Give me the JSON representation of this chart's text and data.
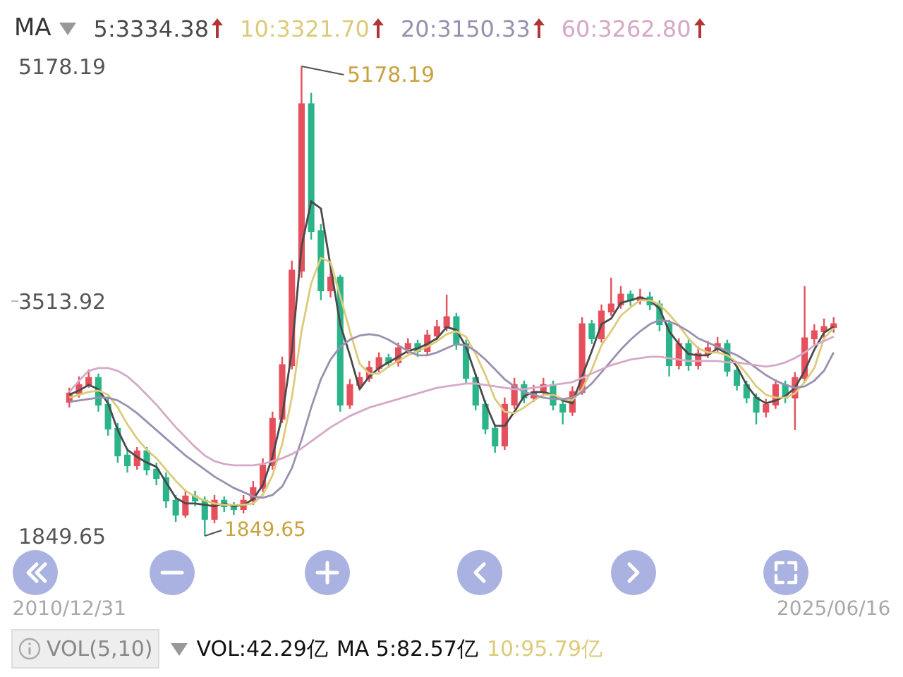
{
  "chart_data": {
    "type": "candlestick",
    "categories": [
      "2010/12/31",
      null,
      null,
      null,
      null,
      null,
      null,
      null,
      null,
      null,
      null,
      null,
      null,
      null,
      null,
      null,
      null,
      null,
      null,
      null,
      null,
      null,
      null,
      null,
      null,
      null,
      null,
      null,
      null,
      null,
      null,
      null,
      null,
      null,
      null,
      null,
      null,
      null,
      null,
      null,
      null,
      null,
      null,
      null,
      null,
      null,
      null,
      null,
      null,
      null,
      null,
      null,
      null,
      null,
      null,
      null,
      null,
      null,
      null,
      null,
      null,
      null,
      null,
      null,
      null,
      null,
      null,
      null,
      null,
      null,
      null,
      null,
      null,
      null,
      null,
      null,
      null,
      null,
      null,
      "2025/06/16"
    ],
    "ohlc": [
      [
        2800,
        2900,
        2760,
        2860
      ],
      [
        2860,
        2980,
        2830,
        2920
      ],
      [
        2920,
        3030,
        2900,
        2970
      ],
      [
        2970,
        3000,
        2730,
        2780
      ],
      [
        2780,
        2830,
        2560,
        2610
      ],
      [
        2610,
        2650,
        2370,
        2420
      ],
      [
        2420,
        2470,
        2300,
        2350
      ],
      [
        2350,
        2480,
        2320,
        2450
      ],
      [
        2450,
        2480,
        2280,
        2320
      ],
      [
        2320,
        2370,
        2210,
        2260
      ],
      [
        2260,
        2300,
        2050,
        2100
      ],
      [
        2100,
        2140,
        1950,
        2000
      ],
      [
        2000,
        2180,
        1980,
        2130
      ],
      [
        2130,
        2170,
        2060,
        2100
      ],
      [
        2100,
        2130,
        1849.65,
        1970
      ],
      [
        1970,
        2140,
        1940,
        2100
      ],
      [
        2100,
        2130,
        2020,
        2060
      ],
      [
        2060,
        2090,
        2000,
        2040
      ],
      [
        2040,
        2140,
        2010,
        2100
      ],
      [
        2100,
        2240,
        2070,
        2190
      ],
      [
        2190,
        2400,
        2160,
        2350
      ],
      [
        2350,
        2730,
        2320,
        2680
      ],
      [
        2680,
        3120,
        2650,
        3060
      ],
      [
        3060,
        3800,
        3030,
        3730
      ],
      [
        3730,
        5178.19,
        3680,
        4910
      ],
      [
        4910,
        4990,
        3950,
        4010
      ],
      [
        4010,
        4060,
        3520,
        3590
      ],
      [
        3590,
        3760,
        3540,
        3680
      ],
      [
        3680,
        3700,
        2730,
        2780
      ],
      [
        2780,
        2960,
        2750,
        2920
      ],
      [
        2920,
        3010,
        2880,
        2970
      ],
      [
        2970,
        3090,
        2940,
        3040
      ],
      [
        3040,
        3150,
        3010,
        3110
      ],
      [
        3110,
        3140,
        3040,
        3080
      ],
      [
        3080,
        3220,
        3050,
        3180
      ],
      [
        3180,
        3250,
        3140,
        3210
      ],
      [
        3210,
        3240,
        3120,
        3160
      ],
      [
        3160,
        3310,
        3130,
        3270
      ],
      [
        3270,
        3380,
        3240,
        3330
      ],
      [
        3330,
        3560,
        3300,
        3400
      ],
      [
        3400,
        3430,
        3170,
        3210
      ],
      [
        3210,
        3240,
        2930,
        2970
      ],
      [
        2970,
        3000,
        2740,
        2780
      ],
      [
        2780,
        2810,
        2570,
        2610
      ],
      [
        2610,
        2640,
        2440,
        2490
      ],
      [
        2490,
        2830,
        2460,
        2780
      ],
      [
        2780,
        2970,
        2750,
        2920
      ],
      [
        2920,
        2950,
        2790,
        2830
      ],
      [
        2830,
        2920,
        2800,
        2870
      ],
      [
        2870,
        2970,
        2840,
        2920
      ],
      [
        2920,
        2950,
        2740,
        2780
      ],
      [
        2780,
        2820,
        2640,
        2730
      ],
      [
        2730,
        2910,
        2700,
        2870
      ],
      [
        2870,
        3400,
        2850,
        3350
      ],
      [
        3350,
        3380,
        3210,
        3250
      ],
      [
        3250,
        3490,
        3220,
        3440
      ],
      [
        3440,
        3680,
        3410,
        3490
      ],
      [
        3490,
        3620,
        3460,
        3560
      ],
      [
        3560,
        3590,
        3480,
        3520
      ],
      [
        3520,
        3600,
        3490,
        3540
      ],
      [
        3540,
        3580,
        3450,
        3490
      ],
      [
        3490,
        3520,
        3300,
        3350
      ],
      [
        3350,
        3380,
        2980,
        3060
      ],
      [
        3060,
        3250,
        3030,
        3210
      ],
      [
        3210,
        3240,
        3020,
        3060
      ],
      [
        3060,
        3190,
        3030,
        3140
      ],
      [
        3140,
        3230,
        3110,
        3180
      ],
      [
        3180,
        3260,
        3150,
        3210
      ],
      [
        3210,
        3240,
        2980,
        3020
      ],
      [
        3020,
        3050,
        2880,
        2920
      ],
      [
        2920,
        2950,
        2790,
        2830
      ],
      [
        2830,
        2860,
        2640,
        2730
      ],
      [
        2730,
        2820,
        2690,
        2780
      ],
      [
        2780,
        2960,
        2750,
        2920
      ],
      [
        2920,
        2950,
        2790,
        2830
      ],
      [
        2830,
        3010,
        2600,
        2970
      ],
      [
        2970,
        3620,
        2940,
        3250
      ],
      [
        3250,
        3350,
        3200,
        3300
      ],
      [
        3300,
        3390,
        3250,
        3330
      ],
      [
        3330,
        3400,
        3290,
        3350
      ]
    ],
    "series": [
      {
        "name": "5:3334.38",
        "type": "line",
        "color": "#4a4a4a",
        "values": [
          2850,
          2880,
          2920,
          2890,
          2790,
          2600,
          2460,
          2410,
          2370,
          2340,
          2230,
          2120,
          2080,
          2080,
          2070,
          2060,
          2080,
          2060,
          2070,
          2110,
          2210,
          2410,
          2700,
          3160,
          3900,
          4220,
          4170,
          3760,
          3350,
          3130,
          2890,
          2980,
          3040,
          3080,
          3120,
          3160,
          3180,
          3210,
          3250,
          3330,
          3310,
          3190,
          2990,
          2790,
          2630,
          2630,
          2730,
          2840,
          2870,
          2870,
          2850,
          2810,
          2790,
          2980,
          3160,
          3350,
          3390,
          3500,
          3520,
          3540,
          3520,
          3460,
          3300,
          3210,
          3140,
          3130,
          3130,
          3180,
          3140,
          3050,
          2920,
          2830,
          2790,
          2810,
          2840,
          2900,
          3020,
          3170,
          3290,
          3334.38
        ]
      },
      {
        "name": "10:3321.70",
        "type": "line",
        "color": "#dccb7a",
        "values": [
          2830,
          2850,
          2870,
          2880,
          2850,
          2760,
          2640,
          2540,
          2460,
          2400,
          2320,
          2240,
          2170,
          2130,
          2100,
          2080,
          2070,
          2070,
          2070,
          2080,
          2140,
          2280,
          2500,
          2830,
          3300,
          3640,
          3820,
          3790,
          3550,
          3300,
          3070,
          3000,
          3000,
          3050,
          3090,
          3130,
          3160,
          3190,
          3230,
          3280,
          3300,
          3260,
          3140,
          2990,
          2820,
          2730,
          2720,
          2760,
          2810,
          2850,
          2850,
          2820,
          2810,
          2890,
          3030,
          3200,
          3300,
          3410,
          3470,
          3520,
          3520,
          3490,
          3420,
          3340,
          3250,
          3180,
          3150,
          3150,
          3130,
          3080,
          3000,
          2910,
          2850,
          2830,
          2830,
          2860,
          2940,
          3040,
          3250,
          3321.7
        ]
      },
      {
        "name": "20:3150.33",
        "type": "line",
        "color": "#9a90b0",
        "values": [
          2800,
          2810,
          2820,
          2830,
          2830,
          2810,
          2770,
          2720,
          2660,
          2600,
          2540,
          2480,
          2420,
          2370,
          2320,
          2270,
          2230,
          2190,
          2160,
          2130,
          2120,
          2140,
          2200,
          2330,
          2530,
          2760,
          2960,
          3100,
          3190,
          3240,
          3270,
          3280,
          3270,
          3240,
          3200,
          3160,
          3130,
          3130,
          3150,
          3180,
          3210,
          3200,
          3160,
          3100,
          3030,
          2960,
          2910,
          2870,
          2850,
          2830,
          2820,
          2820,
          2830,
          2870,
          2930,
          3010,
          3090,
          3170,
          3240,
          3300,
          3350,
          3380,
          3370,
          3340,
          3300,
          3250,
          3220,
          3190,
          3160,
          3130,
          3090,
          3040,
          2990,
          2950,
          2920,
          2900,
          2910,
          2950,
          3020,
          3150.33
        ]
      },
      {
        "name": "60:3262.80",
        "type": "line",
        "color": "#d6a9c6",
        "values": [
          2870,
          2950,
          3020,
          3040,
          3040,
          3020,
          2980,
          2920,
          2850,
          2780,
          2700,
          2620,
          2550,
          2480,
          2420,
          2380,
          2360,
          2350,
          2350,
          2350,
          2360,
          2380,
          2400,
          2430,
          2470,
          2520,
          2570,
          2620,
          2660,
          2700,
          2730,
          2760,
          2780,
          2800,
          2820,
          2840,
          2860,
          2880,
          2900,
          2910,
          2920,
          2930,
          2930,
          2920,
          2910,
          2900,
          2890,
          2890,
          2900,
          2910,
          2920,
          2930,
          2940,
          2970,
          3000,
          3030,
          3060,
          3080,
          3100,
          3110,
          3120,
          3120,
          3110,
          3100,
          3090,
          3090,
          3090,
          3090,
          3080,
          3080,
          3070,
          3060,
          3050,
          3060,
          3080,
          3110,
          3150,
          3200,
          3230,
          3262.8
        ]
      }
    ],
    "ylim": [
      1849.65,
      5178.19
    ],
    "yticks": [
      5178.19,
      3513.92,
      1849.65
    ],
    "grid": false,
    "legend": false,
    "annotations": [
      "5178.19",
      "1849.65",
      "MA",
      "VOL(5,10)",
      "VOL:42.29亿",
      "MA 5:82.57亿",
      "10:95.79亿"
    ]
  }
}
